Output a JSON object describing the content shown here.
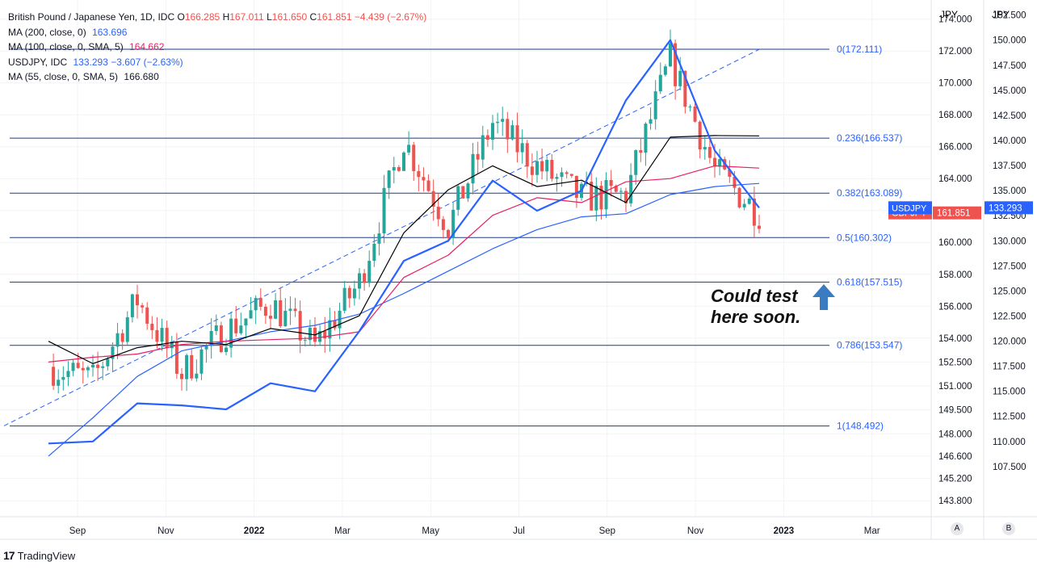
{
  "legend": {
    "main": {
      "name": "British Pound / Japanese Yen, 1D, IDC",
      "o_label": "O",
      "o": "166.285",
      "h_label": "H",
      "h": "167.011",
      "l_label": "L",
      "l": "161.650",
      "c_label": "C",
      "c": "161.851",
      "chg": "−4.439 (−2.67%)"
    },
    "ma200": {
      "label": "MA (200, close, 0)",
      "value": "163.696"
    },
    "ma100": {
      "label": "MA (100, close, 0, SMA, 5)",
      "value": "164.662"
    },
    "usdjpy": {
      "label": "USDJPY, IDC",
      "value": "133.293",
      "chg": "−3.607 (−2.63%)"
    },
    "ma55": {
      "label": "MA (55, close, 0, SMA, 5)",
      "value": "166.680"
    }
  },
  "annotation": {
    "line1": "Could test",
    "line2": "here soon."
  },
  "price_tags": {
    "gbpjpy": {
      "label": "GBPJPY",
      "value": "161.851"
    },
    "usdjpy": {
      "label": "USDJPY",
      "value": "133.293"
    }
  },
  "scale_buttons": {
    "a": "A",
    "b": "B"
  },
  "branding": {
    "name": "TradingView",
    "mark": "17"
  },
  "colors": {
    "candle_up": "#26a69a",
    "candle_down": "#ef5350",
    "usdjpy": "#2962ff",
    "ma200": "#2962ff",
    "ma100": "#e91e63",
    "ma55": "#000000",
    "fib": "#1e3a8a",
    "tag_gbp": "#ef5350",
    "tag_usd": "#2962ff",
    "arrow": "#3a7cc2"
  },
  "chart_data": {
    "type": "line",
    "title": "British Pound / Japanese Yen, 1D, IDC",
    "x_tick_labels": [
      "Sep",
      "Nov",
      "2022",
      "Mar",
      "May",
      "Jul",
      "Sep",
      "Nov",
      "2023",
      "Mar"
    ],
    "left_axis": {
      "unit": "JPY",
      "series": "GBPJPY",
      "range": [
        142.8,
        175.2
      ],
      "ticks": [
        "174.000",
        "172.000",
        "170.000",
        "168.000",
        "166.000",
        "164.000",
        "162.000",
        "160.000",
        "158.000",
        "156.000",
        "154.000",
        "152.500",
        "151.000",
        "149.500",
        "148.000",
        "146.600",
        "145.200",
        "143.800"
      ]
    },
    "right_axis": {
      "unit": "JPY",
      "series": "USDJPY",
      "range": [
        102.5,
        154.0
      ],
      "ticks": [
        "152.500",
        "150.000",
        "147.500",
        "145.000",
        "142.500",
        "140.000",
        "137.500",
        "135.000",
        "132.500",
        "130.000",
        "127.500",
        "125.000",
        "122.500",
        "120.000",
        "117.500",
        "115.000",
        "112.500",
        "110.000",
        "107.500"
      ]
    },
    "x": [
      "2021-08",
      "2021-09",
      "2021-10",
      "2021-11",
      "2021-12",
      "2022-01",
      "2022-02",
      "2022-03",
      "2022-04",
      "2022-05",
      "2022-06",
      "2022-07",
      "2022-08",
      "2022-09",
      "2022-10",
      "2022-11",
      "2022-12"
    ],
    "series": [
      {
        "name": "GBPJPY",
        "axis": "left",
        "values": [
          152.2,
          151.4,
          156.4,
          151.8,
          154.5,
          156.2,
          153.5,
          157.5,
          166.5,
          161.0,
          167.5,
          164.8,
          162.8,
          163.0,
          171.5,
          164.5,
          161.851
        ]
      },
      {
        "name": "MA (200, close, 0)",
        "axis": "left",
        "values": [
          146.6,
          149.0,
          151.6,
          153.2,
          153.8,
          154.4,
          154.8,
          155.5,
          156.8,
          158.2,
          159.6,
          160.8,
          161.6,
          161.8,
          163.0,
          163.5,
          163.696
        ]
      },
      {
        "name": "MA (100, close, 0, SMA, 5)",
        "axis": "left",
        "values": [
          152.5,
          152.8,
          153.0,
          153.6,
          153.8,
          153.9,
          154.0,
          154.4,
          157.8,
          159.2,
          161.7,
          162.8,
          162.5,
          163.8,
          164.0,
          164.8,
          164.662
        ]
      },
      {
        "name": "MA (55, close, 0, SMA, 5)",
        "axis": "left",
        "values": [
          153.8,
          152.4,
          153.4,
          153.8,
          153.6,
          154.6,
          154.2,
          155.4,
          160.6,
          163.3,
          164.8,
          163.5,
          163.9,
          162.5,
          166.6,
          166.7,
          166.68
        ]
      },
      {
        "name": "USDJPY, IDC",
        "axis": "right",
        "values": [
          109.8,
          110.0,
          113.8,
          113.6,
          113.2,
          115.8,
          115.0,
          121.0,
          128.0,
          130.0,
          136.0,
          133.0,
          135.0,
          144.0,
          150.0,
          139.0,
          133.293
        ]
      }
    ],
    "fibonacci": [
      {
        "label": "0(172.111)",
        "value": 172.111
      },
      {
        "label": "0.236(166.537)",
        "value": 166.537
      },
      {
        "label": "0.382(163.089)",
        "value": 163.089
      },
      {
        "label": "0.5(160.302)",
        "value": 160.302
      },
      {
        "label": "0.618(157.515)",
        "value": 157.515
      },
      {
        "label": "0.786(153.547)",
        "value": 153.547
      },
      {
        "label": "1(148.492)",
        "value": 148.492
      }
    ],
    "trendline": {
      "from": [
        "2021-07",
        148.5
      ],
      "to": [
        "2022-12",
        172.1
      ],
      "style": "dashed"
    },
    "grid": true,
    "legend_position": "top-left"
  }
}
